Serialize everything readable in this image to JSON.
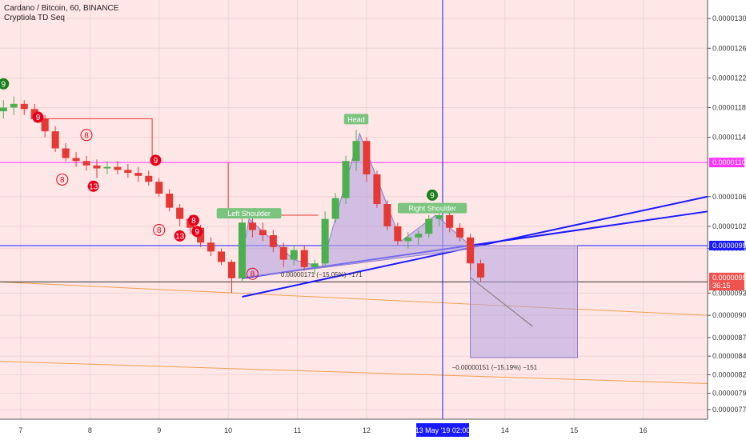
{
  "header": {
    "symbol_line": "Cardano / Bitcoin, 60, BINANCE",
    "indicator_line": "Cryptiola TD Seq"
  },
  "colors": {
    "background": "#ffe7e7",
    "grid": "#f3d3d3",
    "candle_up": "#4caf50",
    "candle_down": "#e53935",
    "pattern_fill": "#b3a3e0",
    "trend_line": "#1a1aff",
    "magenta_line": "#ff33ff",
    "orange_line": "#f0a050",
    "td_red": "#e6001a",
    "td_green": "#1b7f1b",
    "label_green": "#7bc47f",
    "price_badge_red": "#ef5350"
  },
  "chart_data": {
    "type": "candlestick",
    "title": "Cardano / Bitcoin, 60, BINANCE",
    "ylim": [
      7.6e-06,
      1.325e-05
    ],
    "y_ticks": [
      "0.00001300",
      "0.00001260",
      "0.00001220",
      "0.00001180",
      "0.00001140",
      "0.00001060",
      "0.00001020",
      "0.00000990",
      "0.00000930",
      "0.00000900",
      "0.00000870",
      "0.00000845",
      "0.00000820",
      "0.00000795",
      "0.00000773"
    ],
    "x_ticks": [
      "7",
      "8",
      "9",
      "10",
      "11",
      "12",
      "14",
      "15",
      "16"
    ],
    "x_tick_days": [
      7,
      8,
      9,
      10,
      11,
      12,
      14,
      15,
      16
    ],
    "x_range_days": [
      6.7,
      16.93
    ],
    "crosshair": {
      "time_label": "13 May '19   02:00",
      "day": 13.1,
      "price": 9.94e-06
    },
    "price_labels": [
      {
        "text": "0.00001106",
        "price": 1.106e-05,
        "color": "#ff33ff"
      },
      {
        "text": "0.00000994",
        "price": 9.94e-06,
        "color": "#1a1aff"
      },
      {
        "text": "0.00000951",
        "price": 9.51e-06,
        "color": "#ef5350"
      },
      {
        "text": "36:15",
        "price": 9.4e-06,
        "color": "#ef5350"
      }
    ],
    "pattern_labels": [
      {
        "text": "Left Shoulder",
        "day": 10.3,
        "price": 1.037e-05
      },
      {
        "text": "Head",
        "day": 11.85,
        "price": 1.164e-05
      },
      {
        "text": "Right Shoulder",
        "day": 12.95,
        "price": 1.044e-05
      }
    ],
    "measure_labels": [
      {
        "text": "0.00000171 (−15.05%) −171",
        "day": 11.35,
        "price": 9.52e-06
      },
      {
        "text": "−0.00000151 (−15.19%) −151",
        "day": 13.85,
        "price": 8.27e-06
      }
    ],
    "td_counts": [
      {
        "text": "9",
        "day": 6.75,
        "price": 1.212e-05,
        "style": "green"
      },
      {
        "text": "9",
        "day": 7.25,
        "price": 1.167e-05,
        "style": "red"
      },
      {
        "text": "8",
        "day": 7.95,
        "price": 1.143e-05,
        "style": "red-outline"
      },
      {
        "text": "8",
        "day": 7.6,
        "price": 1.083e-05,
        "style": "red-outline"
      },
      {
        "text": "13",
        "day": 8.05,
        "price": 1.074e-05,
        "style": "red"
      },
      {
        "text": "9",
        "day": 8.95,
        "price": 1.109e-05,
        "style": "red"
      },
      {
        "text": "8",
        "day": 9.0,
        "price": 1.015e-05,
        "style": "red-outline"
      },
      {
        "text": "8",
        "day": 9.5,
        "price": 1.028e-05,
        "style": "red"
      },
      {
        "text": "9",
        "day": 9.55,
        "price": 1.013e-05,
        "style": "red"
      },
      {
        "text": "13",
        "day": 9.3,
        "price": 1.007e-05,
        "style": "red"
      },
      {
        "text": "8",
        "day": 10.35,
        "price": 9.56e-06,
        "style": "red-outline"
      },
      {
        "text": "9",
        "day": 12.95,
        "price": 1.062e-05,
        "style": "green"
      }
    ],
    "series": [
      {
        "name": "price",
        "points": [
          {
            "d": 6.75,
            "o": 1.175e-05,
            "h": 1.19e-05,
            "l": 1.165e-05,
            "c": 1.18e-05
          },
          {
            "d": 6.9,
            "o": 1.18e-05,
            "h": 1.195e-05,
            "l": 1.17e-05,
            "c": 1.185e-05
          },
          {
            "d": 7.05,
            "o": 1.185e-05,
            "h": 1.19e-05,
            "l": 1.17e-05,
            "c": 1.178e-05
          },
          {
            "d": 7.2,
            "o": 1.178e-05,
            "h": 1.185e-05,
            "l": 1.16e-05,
            "c": 1.165e-05
          },
          {
            "d": 7.35,
            "o": 1.165e-05,
            "h": 1.17e-05,
            "l": 1.14e-05,
            "c": 1.148e-05
          },
          {
            "d": 7.5,
            "o": 1.148e-05,
            "h": 1.155e-05,
            "l": 1.12e-05,
            "c": 1.125e-05
          },
          {
            "d": 7.65,
            "o": 1.125e-05,
            "h": 1.132e-05,
            "l": 1.108e-05,
            "c": 1.112e-05
          },
          {
            "d": 7.8,
            "o": 1.112e-05,
            "h": 1.12e-05,
            "l": 1.1e-05,
            "c": 1.108e-05
          },
          {
            "d": 7.95,
            "o": 1.108e-05,
            "h": 1.115e-05,
            "l": 1.095e-05,
            "c": 1.102e-05
          },
          {
            "d": 8.1,
            "o": 1.102e-05,
            "h": 1.11e-05,
            "l": 1.085e-05,
            "c": 1.098e-05
          },
          {
            "d": 8.25,
            "o": 1.098e-05,
            "h": 1.108e-05,
            "l": 1.09e-05,
            "c": 1.1e-05
          },
          {
            "d": 8.4,
            "o": 1.1e-05,
            "h": 1.108e-05,
            "l": 1.09e-05,
            "c": 1.096e-05
          },
          {
            "d": 8.55,
            "o": 1.096e-05,
            "h": 1.104e-05,
            "l": 1.085e-05,
            "c": 1.092e-05
          },
          {
            "d": 8.7,
            "o": 1.092e-05,
            "h": 1.1e-05,
            "l": 1.08e-05,
            "c": 1.088e-05
          },
          {
            "d": 8.85,
            "o": 1.088e-05,
            "h": 1.095e-05,
            "l": 1.075e-05,
            "c": 1.08e-05
          },
          {
            "d": 9.0,
            "o": 1.08e-05,
            "h": 1.085e-05,
            "l": 1.06e-05,
            "c": 1.064e-05
          },
          {
            "d": 9.15,
            "o": 1.064e-05,
            "h": 1.07e-05,
            "l": 1.04e-05,
            "c": 1.045e-05
          },
          {
            "d": 9.3,
            "o": 1.045e-05,
            "h": 1.05e-05,
            "l": 1.02e-05,
            "c": 1.03e-05
          },
          {
            "d": 9.45,
            "o": 1.03e-05,
            "h": 1.035e-05,
            "l": 1.01e-05,
            "c": 1.018e-05
          },
          {
            "d": 9.6,
            "o": 1.018e-05,
            "h": 1.022e-05,
            "l": 9.92e-06,
            "c": 9.98e-06
          },
          {
            "d": 9.75,
            "o": 9.98e-06,
            "h": 1.005e-05,
            "l": 9.8e-06,
            "c": 9.86e-06
          },
          {
            "d": 9.9,
            "o": 9.86e-06,
            "h": 9.9e-06,
            "l": 9.68e-06,
            "c": 9.72e-06
          },
          {
            "d": 10.05,
            "o": 9.72e-06,
            "h": 9.75e-06,
            "l": 9.3e-06,
            "c": 9.5e-06
          },
          {
            "d": 10.2,
            "o": 9.5e-06,
            "h": 1.035e-05,
            "l": 9.45e-06,
            "c": 1.025e-05
          },
          {
            "d": 10.35,
            "o": 1.025e-05,
            "h": 1.035e-05,
            "l": 1.005e-05,
            "c": 1.015e-05
          },
          {
            "d": 10.5,
            "o": 1.015e-05,
            "h": 1.025e-05,
            "l": 1e-05,
            "c": 1.008e-05
          },
          {
            "d": 10.65,
            "o": 1.008e-05,
            "h": 1.015e-05,
            "l": 9.85e-06,
            "c": 9.92e-06
          },
          {
            "d": 10.8,
            "o": 9.92e-06,
            "h": 9.98e-06,
            "l": 9.65e-06,
            "c": 9.75e-06
          },
          {
            "d": 10.95,
            "o": 9.75e-06,
            "h": 9.95e-06,
            "l": 9.68e-06,
            "c": 9.88e-06
          },
          {
            "d": 11.1,
            "o": 9.88e-06,
            "h": 9.95e-06,
            "l": 9.6e-06,
            "c": 9.65e-06
          },
          {
            "d": 11.25,
            "o": 9.65e-06,
            "h": 9.75e-06,
            "l": 9.55e-06,
            "c": 9.7e-06
          },
          {
            "d": 11.4,
            "o": 9.7e-06,
            "h": 1.04e-05,
            "l": 9.65e-06,
            "c": 1.03e-05
          },
          {
            "d": 11.55,
            "o": 1.03e-05,
            "h": 1.065e-05,
            "l": 1.025e-05,
            "c": 1.058e-05
          },
          {
            "d": 11.7,
            "o": 1.058e-05,
            "h": 1.115e-05,
            "l": 1.05e-05,
            "c": 1.108e-05
          },
          {
            "d": 11.85,
            "o": 1.108e-05,
            "h": 1.15e-05,
            "l": 1.095e-05,
            "c": 1.135e-05
          },
          {
            "d": 12.0,
            "o": 1.135e-05,
            "h": 1.14e-05,
            "l": 1.08e-05,
            "c": 1.09e-05
          },
          {
            "d": 12.15,
            "o": 1.09e-05,
            "h": 1.095e-05,
            "l": 1.045e-05,
            "c": 1.05e-05
          },
          {
            "d": 12.3,
            "o": 1.05e-05,
            "h": 1.055e-05,
            "l": 1.015e-05,
            "c": 1.02e-05
          },
          {
            "d": 12.45,
            "o": 1.02e-05,
            "h": 1.025e-05,
            "l": 9.95e-06,
            "c": 1e-05
          },
          {
            "d": 12.6,
            "o": 1e-05,
            "h": 1.012e-05,
            "l": 9.9e-06,
            "c": 1.005e-05
          },
          {
            "d": 12.75,
            "o": 1.005e-05,
            "h": 1.015e-05,
            "l": 9.95e-06,
            "c": 1.01e-05
          },
          {
            "d": 12.9,
            "o": 1.01e-05,
            "h": 1.035e-05,
            "l": 1.005e-05,
            "c": 1.03e-05
          },
          {
            "d": 13.05,
            "o": 1.03e-05,
            "h": 1.042e-05,
            "l": 1.02e-05,
            "c": 1.035e-05
          },
          {
            "d": 13.2,
            "o": 1.035e-05,
            "h": 1.04e-05,
            "l": 1.012e-05,
            "c": 1.018e-05
          },
          {
            "d": 13.35,
            "o": 1.018e-05,
            "h": 1.024e-05,
            "l": 1e-05,
            "c": 1.005e-05
          },
          {
            "d": 13.5,
            "o": 1.005e-05,
            "h": 1.01e-05,
            "l": 9.6e-06,
            "c": 9.7e-06
          },
          {
            "d": 13.65,
            "o": 9.7e-06,
            "h": 9.75e-06,
            "l": 9.45e-06,
            "c": 9.51e-06
          }
        ]
      }
    ]
  }
}
